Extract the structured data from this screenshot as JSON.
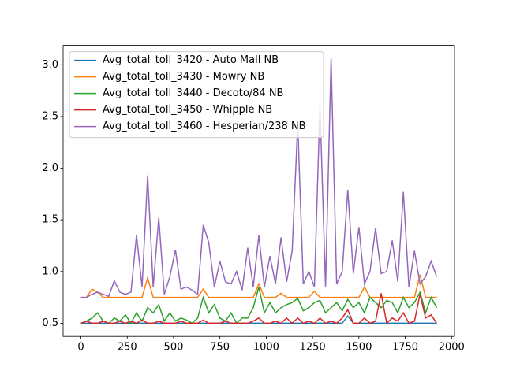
{
  "chart_data": {
    "type": "line",
    "x": [
      0,
      30,
      60,
      90,
      120,
      150,
      180,
      210,
      240,
      270,
      300,
      330,
      360,
      390,
      420,
      450,
      480,
      510,
      540,
      570,
      600,
      630,
      660,
      690,
      720,
      750,
      780,
      810,
      840,
      870,
      900,
      930,
      960,
      990,
      1020,
      1050,
      1080,
      1110,
      1140,
      1170,
      1200,
      1230,
      1260,
      1290,
      1320,
      1350,
      1380,
      1410,
      1440,
      1470,
      1500,
      1530,
      1560,
      1590,
      1620,
      1650,
      1680,
      1710,
      1740,
      1770,
      1800,
      1830,
      1860,
      1890,
      1920
    ],
    "series": [
      {
        "name": "Avg_total_toll_3420 - Auto Mall NB",
        "color": "#1f77b4",
        "values": [
          0.5,
          0.5,
          0.5,
          0.5,
          0.5,
          0.5,
          0.5,
          0.5,
          0.5,
          0.5,
          0.5,
          0.5,
          0.5,
          0.5,
          0.5,
          0.5,
          0.5,
          0.5,
          0.5,
          0.5,
          0.5,
          0.5,
          0.5,
          0.5,
          0.5,
          0.5,
          0.5,
          0.5,
          0.5,
          0.5,
          0.5,
          0.5,
          0.5,
          0.5,
          0.5,
          0.5,
          0.5,
          0.5,
          0.5,
          0.5,
          0.5,
          0.5,
          0.5,
          0.5,
          0.5,
          0.5,
          0.5,
          0.5,
          0.57,
          0.5,
          0.5,
          0.5,
          0.5,
          0.5,
          0.5,
          0.5,
          0.5,
          0.5,
          0.5,
          0.5,
          0.5,
          0.5,
          0.5,
          0.5,
          0.5
        ]
      },
      {
        "name": "Avg_total_toll_3430 - Mowry NB",
        "color": "#ff7f0e",
        "values": [
          0.75,
          0.75,
          0.83,
          0.8,
          0.75,
          0.75,
          0.75,
          0.75,
          0.75,
          0.75,
          0.75,
          0.75,
          0.94,
          0.75,
          0.75,
          0.75,
          0.75,
          0.75,
          0.75,
          0.75,
          0.75,
          0.75,
          0.83,
          0.75,
          0.75,
          0.75,
          0.75,
          0.75,
          0.75,
          0.75,
          0.75,
          0.75,
          0.88,
          0.75,
          0.75,
          0.75,
          0.79,
          0.75,
          0.75,
          0.75,
          0.75,
          0.75,
          0.81,
          0.75,
          0.75,
          0.75,
          0.75,
          0.75,
          0.75,
          0.75,
          0.75,
          0.85,
          0.75,
          0.75,
          0.75,
          0.75,
          0.75,
          0.75,
          0.75,
          0.75,
          0.75,
          0.97,
          0.75,
          0.75,
          0.75
        ]
      },
      {
        "name": "Avg_total_toll_3440 - Decoto/84 NB",
        "color": "#2ca02c",
        "values": [
          0.5,
          0.52,
          0.55,
          0.6,
          0.52,
          0.5,
          0.55,
          0.52,
          0.58,
          0.5,
          0.6,
          0.52,
          0.65,
          0.6,
          0.68,
          0.52,
          0.6,
          0.52,
          0.55,
          0.53,
          0.5,
          0.55,
          0.75,
          0.6,
          0.68,
          0.55,
          0.52,
          0.6,
          0.5,
          0.55,
          0.55,
          0.65,
          0.85,
          0.6,
          0.7,
          0.6,
          0.65,
          0.68,
          0.7,
          0.74,
          0.62,
          0.65,
          0.7,
          0.72,
          0.6,
          0.65,
          0.7,
          0.62,
          0.73,
          0.65,
          0.7,
          0.6,
          0.75,
          0.7,
          0.65,
          0.72,
          0.7,
          0.6,
          0.75,
          0.65,
          0.7,
          0.8,
          0.6,
          0.75,
          0.65
        ]
      },
      {
        "name": "Avg_total_toll_3450 - Whipple NB",
        "color": "#d62728",
        "values": [
          0.5,
          0.52,
          0.5,
          0.5,
          0.52,
          0.5,
          0.5,
          0.52,
          0.5,
          0.52,
          0.5,
          0.53,
          0.5,
          0.5,
          0.52,
          0.5,
          0.5,
          0.5,
          0.52,
          0.5,
          0.5,
          0.5,
          0.53,
          0.5,
          0.5,
          0.5,
          0.52,
          0.5,
          0.5,
          0.5,
          0.5,
          0.52,
          0.55,
          0.5,
          0.5,
          0.52,
          0.5,
          0.55,
          0.5,
          0.55,
          0.5,
          0.52,
          0.5,
          0.55,
          0.5,
          0.52,
          0.5,
          0.55,
          0.63,
          0.5,
          0.5,
          0.55,
          0.5,
          0.52,
          0.79,
          0.5,
          0.55,
          0.52,
          0.6,
          0.5,
          0.52,
          0.78,
          0.55,
          0.58,
          0.5
        ]
      },
      {
        "name": "Avg_total_toll_3460 - Hesperian/238 NB",
        "color": "#9467bd",
        "values": [
          0.75,
          0.75,
          0.78,
          0.8,
          0.78,
          0.76,
          0.91,
          0.8,
          0.78,
          0.8,
          1.35,
          0.85,
          1.93,
          0.85,
          1.52,
          0.78,
          0.95,
          1.21,
          0.83,
          0.85,
          0.82,
          0.78,
          1.45,
          1.28,
          0.85,
          1.1,
          0.9,
          0.88,
          1.0,
          0.82,
          1.23,
          0.85,
          1.35,
          0.85,
          1.15,
          0.88,
          1.33,
          0.9,
          1.2,
          2.43,
          0.88,
          1.0,
          0.85,
          2.61,
          0.85,
          3.06,
          0.88,
          1.0,
          1.79,
          0.98,
          1.43,
          0.88,
          1.0,
          1.42,
          0.98,
          1.0,
          1.3,
          0.9,
          1.77,
          0.85,
          1.2,
          0.88,
          0.95,
          1.1,
          0.95
        ]
      }
    ],
    "xlim": [
      -96,
      2016
    ],
    "ylim": [
      0.372,
      3.188
    ],
    "xticks": [
      0,
      250,
      500,
      750,
      1000,
      1250,
      1500,
      1750,
      2000
    ],
    "yticks": [
      0.5,
      {
        "value": 1.0,
        "label": "1.0"
      },
      1.5,
      {
        "value": 2.0,
        "label": "2.0"
      },
      2.5,
      {
        "value": 3.0,
        "label": "3.0"
      }
    ],
    "legend": "upper left"
  }
}
